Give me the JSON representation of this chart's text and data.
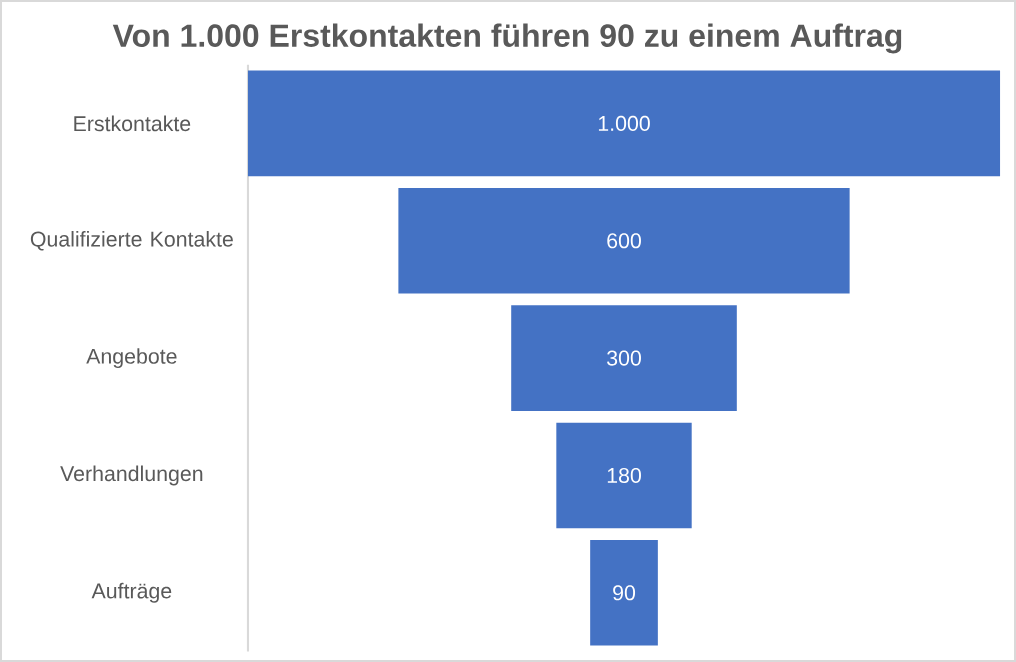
{
  "chart_data": {
    "type": "other",
    "title": "Von 1.000 Erstkontakten führen 90 zu einem Auftrag",
    "categories": [
      "Erstkontakte",
      "Qualifizierte Kontakte",
      "Angebote",
      "Verhandlungen",
      "Aufträge"
    ],
    "values": [
      1000,
      600,
      300,
      180,
      90
    ],
    "value_labels": [
      "1.000",
      "600",
      "300",
      "180",
      "90"
    ],
    "color": "#4472c4"
  }
}
